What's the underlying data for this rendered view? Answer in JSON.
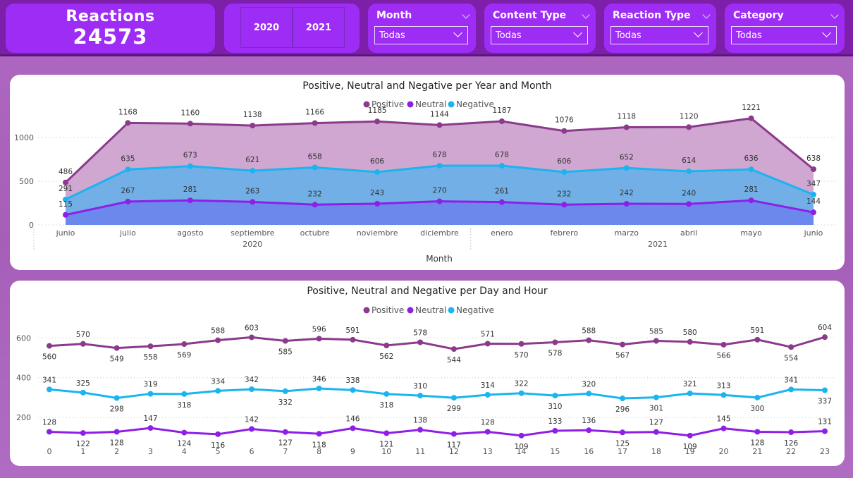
{
  "kpi": {
    "label": "Reactions",
    "value": "24573"
  },
  "years": [
    "2020",
    "2021"
  ],
  "filters": [
    {
      "title": "Month",
      "value": "Todas"
    },
    {
      "title": "Content Type",
      "value": "Todas"
    },
    {
      "title": "Reaction Type",
      "value": "Todas"
    },
    {
      "title": "Category",
      "value": "Todas"
    }
  ],
  "colors": {
    "positive": "#8b3a8c",
    "neutral": "#8e1fe6",
    "negative": "#1ab4ef"
  },
  "chart_data": [
    {
      "type": "area",
      "title": "Positive, Neutral and Negative per Year and Month",
      "xlabel": "Month",
      "ylabel": "",
      "legend": "top-center",
      "grid": true,
      "categories": [
        "junio",
        "julio",
        "agosto",
        "septiembre",
        "octubre",
        "noviembre",
        "diciembre",
        "enero",
        "febrero",
        "marzo",
        "abril",
        "mayo",
        "junio"
      ],
      "groups": [
        {
          "label": "2020",
          "span": [
            0,
            6
          ]
        },
        {
          "label": "2021",
          "span": [
            7,
            12
          ]
        }
      ],
      "yticks": [
        0,
        500,
        1000
      ],
      "ylim": [
        0,
        1300
      ],
      "series": [
        {
          "name": "Positive",
          "values": [
            486,
            1168,
            1160,
            1138,
            1166,
            1185,
            1144,
            1187,
            1076,
            1118,
            1120,
            1221,
            638
          ]
        },
        {
          "name": "Neutral",
          "values": [
            115,
            267,
            281,
            263,
            232,
            243,
            270,
            261,
            232,
            242,
            240,
            281,
            144
          ]
        },
        {
          "name": "Negative",
          "values": [
            291,
            635,
            673,
            621,
            658,
            606,
            678,
            678,
            606,
            652,
            614,
            636,
            347
          ]
        }
      ]
    },
    {
      "type": "line",
      "title": "Positive, Neutral and Negative per Day and Hour",
      "xlabel": "",
      "ylabel": "",
      "legend": "top-center",
      "grid": true,
      "categories": [
        "0",
        "1",
        "2",
        "3",
        "4",
        "5",
        "6",
        "7",
        "8",
        "9",
        "10",
        "11",
        "12",
        "13",
        "14",
        "15",
        "16",
        "17",
        "18",
        "19",
        "20",
        "21",
        "22",
        "23"
      ],
      "yticks": [
        200,
        400,
        600
      ],
      "ylim": [
        80,
        640
      ],
      "series": [
        {
          "name": "Positive",
          "values": [
            560,
            570,
            549,
            558,
            569,
            588,
            603,
            585,
            596,
            591,
            562,
            578,
            544,
            571,
            570,
            578,
            588,
            567,
            585,
            580,
            566,
            591,
            554,
            604
          ]
        },
        {
          "name": "Neutral",
          "values": [
            128,
            122,
            128,
            147,
            124,
            116,
            142,
            127,
            118,
            146,
            121,
            138,
            117,
            128,
            109,
            133,
            136,
            125,
            127,
            109,
            145,
            128,
            126,
            131
          ]
        },
        {
          "name": "Negative",
          "values": [
            341,
            325,
            298,
            319,
            318,
            334,
            342,
            332,
            346,
            338,
            318,
            310,
            299,
            314,
            322,
            310,
            320,
            296,
            301,
            321,
            313,
            300,
            341,
            337
          ]
        }
      ]
    }
  ]
}
